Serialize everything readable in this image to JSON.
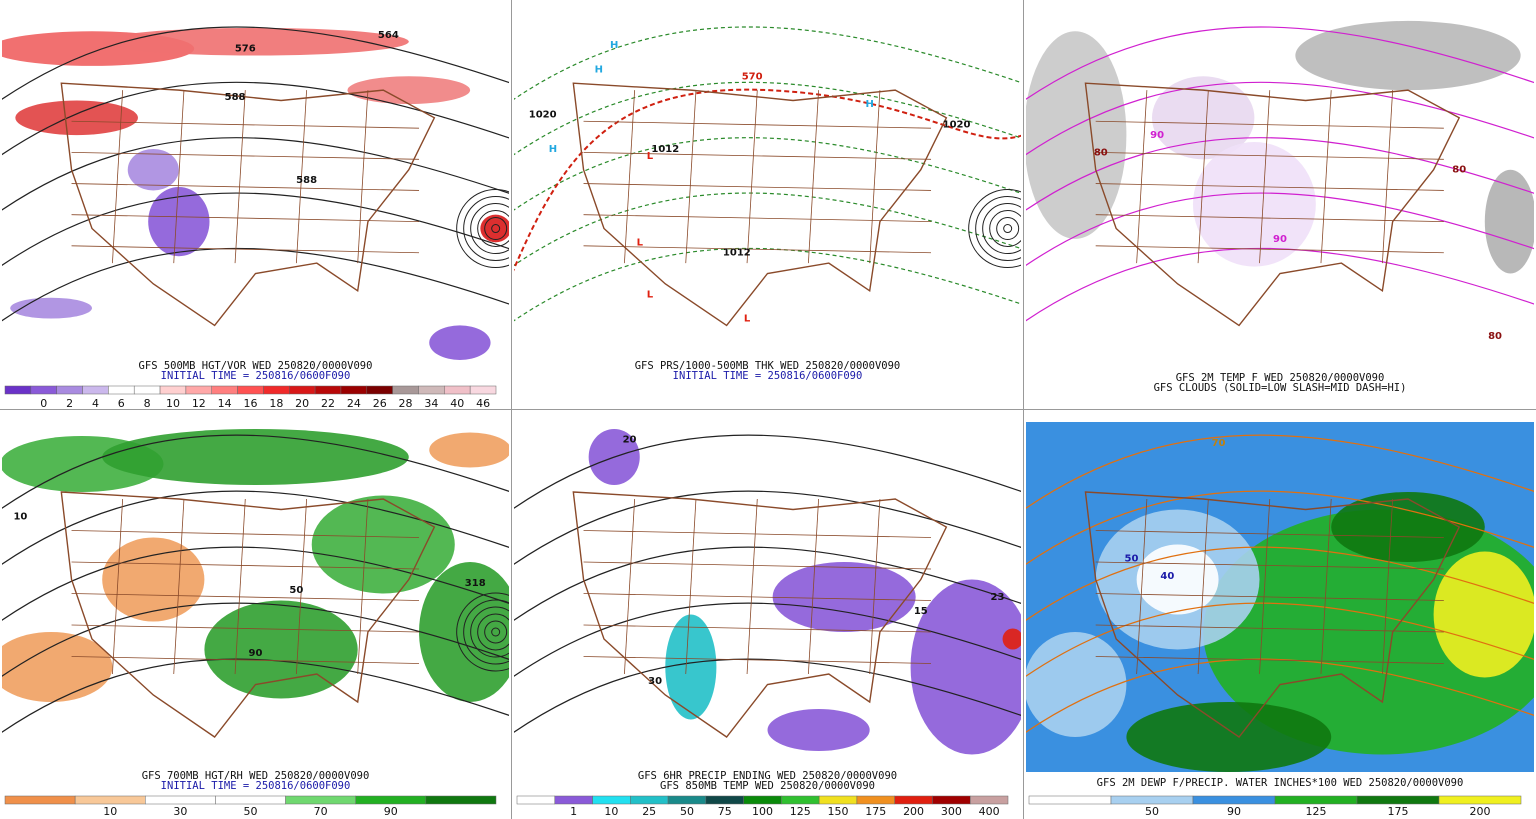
{
  "panels": [
    {
      "caption": [
        {
          "text": "GFS 500MB HGT/VOR WED 250820/0000V090",
          "color": "#111111"
        },
        {
          "text": "INITIAL TIME = 250816/0600F090",
          "color": "#1a1aa8"
        }
      ],
      "colorbar": {
        "labels": [
          "0",
          "2",
          "4",
          "6",
          "8",
          "10",
          "12",
          "14",
          "16",
          "18",
          "20",
          "22",
          "24",
          "26",
          "28",
          "34",
          "40",
          "46"
        ],
        "colors": [
          "#6a32c8",
          "#8a5ad8",
          "#a98be0",
          "#cbb8ec",
          "#ffffff",
          "#ffffff",
          "#ffd0d0",
          "#ffa8a8",
          "#ff7f7f",
          "#ff5252",
          "#f02a2a",
          "#d81818",
          "#b80808",
          "#9a0000",
          "#7a0000",
          "#a89898",
          "#cfb9b9",
          "#f0c0c8",
          "#f8d8e0"
        ]
      },
      "labels": [
        {
          "text": "576",
          "color": "#111111"
        },
        {
          "text": "564",
          "color": "#111111"
        },
        {
          "text": "588",
          "color": "#111111"
        },
        {
          "text": "588",
          "color": "#111111"
        }
      ]
    },
    {
      "caption": [
        {
          "text": "GFS PRS/1000-500MB THK WED 250820/0000V090",
          "color": "#111111"
        },
        {
          "text": "INITIAL TIME = 250816/0600F090",
          "color": "#1a1aa8"
        }
      ],
      "labels": [
        {
          "text": "H",
          "color": "#22a8e0"
        },
        {
          "text": "H",
          "color": "#22a8e0"
        },
        {
          "text": "H",
          "color": "#22a8e0"
        },
        {
          "text": "H",
          "color": "#22a8e0"
        },
        {
          "text": "L",
          "color": "#e02010"
        },
        {
          "text": "L",
          "color": "#e02010"
        },
        {
          "text": "L",
          "color": "#e02010"
        },
        {
          "text": "L",
          "color": "#e02010"
        },
        {
          "text": "1020",
          "color": "#111111"
        },
        {
          "text": "1012",
          "color": "#111111"
        },
        {
          "text": "1012",
          "color": "#111111"
        },
        {
          "text": "1020",
          "color": "#111111"
        },
        {
          "text": "570",
          "color": "#d02010"
        }
      ]
    },
    {
      "caption": [
        {
          "text": "GFS 2M TEMP F WED 250820/0000V090",
          "color": "#111111"
        },
        {
          "text": "GFS CLOUDS (SOLID=LOW SLASH=MID DASH=HI)",
          "color": "#111111"
        }
      ],
      "labels": [
        {
          "text": "90",
          "color": "#d020d0"
        },
        {
          "text": "90",
          "color": "#d020d0"
        },
        {
          "text": "80",
          "color": "#8a1010"
        },
        {
          "text": "80",
          "color": "#8a1010"
        },
        {
          "text": "80",
          "color": "#8a1010"
        }
      ]
    },
    {
      "caption": [
        {
          "text": "GFS 700MB HGT/RH WED 250820/0000V090",
          "color": "#111111"
        },
        {
          "text": "INITIAL TIME = 250816/0600F090",
          "color": "#1a1aa8"
        }
      ],
      "colorbar": {
        "labels": [
          "10",
          "30",
          "50",
          "70",
          "90"
        ],
        "colors": [
          "#f0904a",
          "#f8c898",
          "#ffffff",
          "#ffffff",
          "#70d870",
          "#22b022",
          "#107810"
        ]
      },
      "labels": [
        {
          "text": "10",
          "color": "#111111"
        },
        {
          "text": "50",
          "color": "#111111"
        },
        {
          "text": "90",
          "color": "#111111"
        },
        {
          "text": "318",
          "color": "#111111"
        }
      ]
    },
    {
      "caption": [
        {
          "text": "GFS 6HR PRECIP ENDING WED 250820/0000V090",
          "color": "#111111"
        },
        {
          "text": "GFS 850MB TEMP WED 250820/0000V090",
          "color": "#111111"
        }
      ],
      "colorbar": {
        "labels": [
          "1",
          "10",
          "25",
          "50",
          "75",
          "100",
          "125",
          "150",
          "175",
          "200",
          "300",
          "400"
        ],
        "colors": [
          "#ffffff",
          "#8a5ad8",
          "#22e0f0",
          "#22c0c8",
          "#1a8a8a",
          "#104848",
          "#0a8a0a",
          "#30c030",
          "#f0e020",
          "#f09020",
          "#e02010",
          "#a00000",
          "#c8a0a0"
        ]
      },
      "labels": [
        {
          "text": "20",
          "color": "#111111"
        },
        {
          "text": "23",
          "color": "#111111"
        },
        {
          "text": "15",
          "color": "#111111"
        },
        {
          "text": "30",
          "color": "#111111"
        }
      ]
    },
    {
      "caption": [
        {
          "text": "GFS 2M DEWP F/PRECIP. WATER INCHES*100 WED 250820/0000V090",
          "color": "#111111"
        }
      ],
      "colorbar": {
        "labels": [
          "50",
          "90",
          "125",
          "175",
          "200"
        ],
        "colors": [
          "#ffffff",
          "#a8d0f0",
          "#3a90e0",
          "#22b022",
          "#107810",
          "#f0f020"
        ]
      },
      "labels": [
        {
          "text": "50",
          "color": "#1a1aa8"
        },
        {
          "text": "40",
          "color": "#1a1aa8"
        },
        {
          "text": "70",
          "color": "#c08010"
        }
      ]
    }
  ]
}
